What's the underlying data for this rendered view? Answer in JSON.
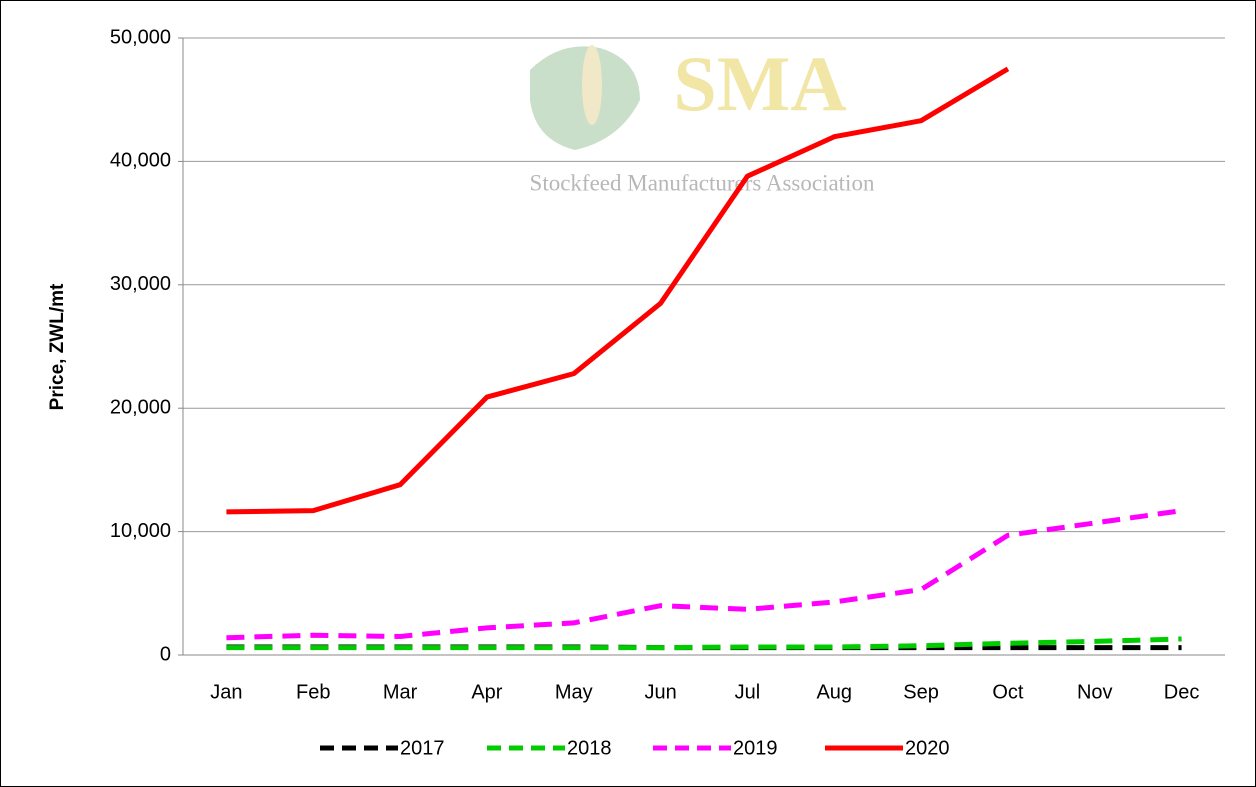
{
  "chart_data": {
    "type": "line",
    "y_label": "Price, ZWL/mt",
    "watermark": {
      "logo": "SMA",
      "text": "Stockfeed Manufacturers Association"
    },
    "categories": [
      "Jan",
      "Feb",
      "Mar",
      "Apr",
      "May",
      "Jun",
      "Jul",
      "Aug",
      "Sep",
      "Oct",
      "Nov",
      "Dec"
    ],
    "series": [
      {
        "name": "2017",
        "color": "#000000",
        "line_style": "dashed",
        "values": [
          650,
          650,
          650,
          650,
          650,
          600,
          600,
          600,
          600,
          600,
          600,
          600
        ]
      },
      {
        "name": "2018",
        "color": "#00cc00",
        "line_style": "dashed",
        "values": [
          600,
          600,
          600,
          600,
          600,
          600,
          650,
          650,
          750,
          950,
          1100,
          1300
        ]
      },
      {
        "name": "2019",
        "color": "#ff00ff",
        "line_style": "dashed",
        "values": [
          1400,
          1600,
          1500,
          2200,
          2600,
          4000,
          3700,
          4300,
          5300,
          9700,
          10700,
          11700
        ]
      },
      {
        "name": "2020",
        "color": "#ff0000",
        "line_style": "solid",
        "values": [
          11600,
          11700,
          13800,
          20900,
          22800,
          28500,
          38800,
          42000,
          43300,
          47500,
          null,
          null
        ]
      }
    ],
    "ylim": [
      0,
      50000
    ],
    "yticks": [
      0,
      {
        "value": 10000,
        "label": "10,000"
      },
      {
        "value": 20000,
        "label": "20,000"
      },
      {
        "value": 30000,
        "label": "30,000"
      },
      {
        "value": 40000,
        "label": "40,000"
      },
      {
        "value": 50000,
        "label": "50,000"
      }
    ],
    "grid": true,
    "legend": "bottom"
  }
}
